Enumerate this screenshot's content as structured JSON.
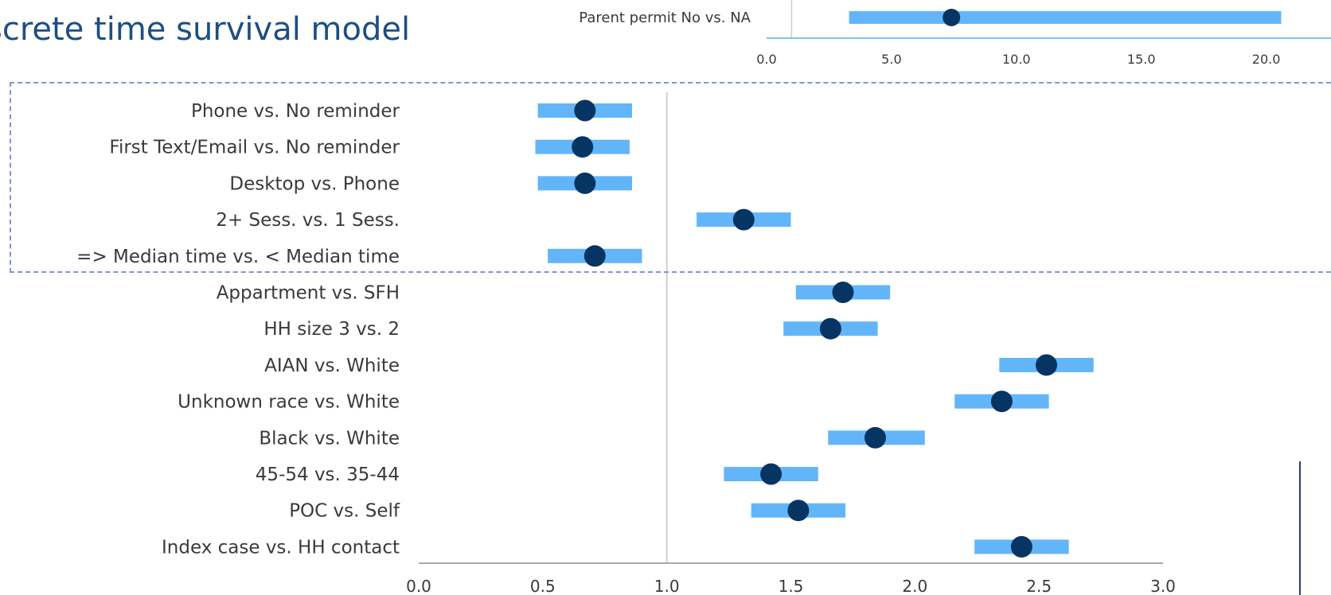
{
  "title": "screte time survival model",
  "colors": {
    "ci_bar": "#63b5f9",
    "point": "#063563",
    "axis": "#a8a8a8",
    "title": "#1b4f83",
    "dashed_box": "#7f97d8",
    "label": "#3a3a3a"
  },
  "chart_data": [
    {
      "type": "forest",
      "title": "",
      "xlabel": "",
      "ylabel": "",
      "xlim": [
        0,
        3
      ],
      "reference_line": 1.0,
      "xticks": [
        "0.0",
        "0.5",
        "1.0",
        "1.5",
        "2.0",
        "2.5",
        "3.0"
      ],
      "grid": false,
      "rows": [
        {
          "label": "Phone vs. No reminder",
          "estimate": 0.67,
          "lower": 0.48,
          "upper": 0.86
        },
        {
          "label": "First Text/Email vs. No reminder",
          "estimate": 0.66,
          "lower": 0.47,
          "upper": 0.85
        },
        {
          "label": "Desktop vs. Phone",
          "estimate": 0.67,
          "lower": 0.48,
          "upper": 0.86
        },
        {
          "label": "2+ Sess. vs. 1 Sess.",
          "estimate": 1.31,
          "lower": 1.12,
          "upper": 1.5
        },
        {
          "label": "=> Median time vs. < Median time",
          "estimate": 0.71,
          "lower": 0.52,
          "upper": 0.9
        },
        {
          "label": "Appartment vs. SFH",
          "estimate": 1.71,
          "lower": 1.52,
          "upper": 1.9
        },
        {
          "label": "HH size 3 vs. 2",
          "estimate": 1.66,
          "lower": 1.47,
          "upper": 1.85
        },
        {
          "label": "AIAN vs. White",
          "estimate": 2.53,
          "lower": 2.34,
          "upper": 2.72
        },
        {
          "label": "Unknown race vs. White",
          "estimate": 2.35,
          "lower": 2.16,
          "upper": 2.54
        },
        {
          "label": "Black vs. White",
          "estimate": 1.84,
          "lower": 1.65,
          "upper": 2.04
        },
        {
          "label": "45-54 vs. 35-44",
          "estimate": 1.42,
          "lower": 1.23,
          "upper": 1.61
        },
        {
          "label": "POC vs. Self",
          "estimate": 1.53,
          "lower": 1.34,
          "upper": 1.72
        },
        {
          "label": "Index case vs. HH contact",
          "estimate": 2.43,
          "lower": 2.24,
          "upper": 2.62
        }
      ]
    },
    {
      "type": "forest",
      "title": "",
      "xlabel": "",
      "ylabel": "",
      "xlim": [
        0,
        21
      ],
      "reference_line": 1.0,
      "xticks": [
        "0.0",
        "5.0",
        "10.0",
        "15.0",
        "20.0"
      ],
      "grid": false,
      "rows": [
        {
          "label": "Parent permit No vs. NA",
          "estimate": 7.4,
          "lower": 3.3,
          "upper": 20.6
        }
      ]
    }
  ]
}
